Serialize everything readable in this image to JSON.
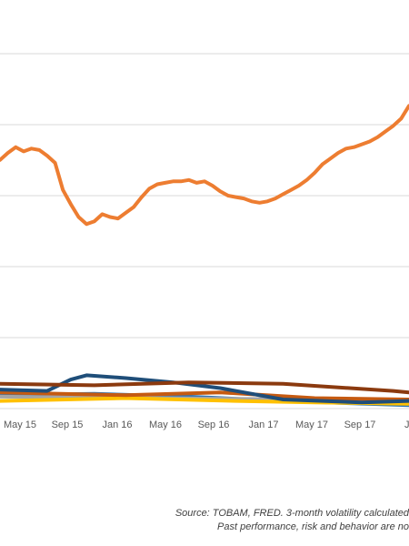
{
  "chart_data": {
    "type": "line",
    "x_tick_labels": [
      "May 15",
      "Sep 15",
      "Jan 16",
      "May 16",
      "Sep 16",
      "Jan 17",
      "May 17",
      "Sep 17",
      "Jan"
    ],
    "grid": "horizontal",
    "y_axis_labels_visible": false,
    "series": [
      {
        "color": "#ED7D31",
        "values": [
          [
            0,
            235
          ],
          [
            5,
            240
          ],
          [
            10,
            244
          ],
          [
            15,
            241
          ],
          [
            20,
            243
          ],
          [
            25,
            242
          ],
          [
            30,
            238
          ],
          [
            35,
            233
          ],
          [
            40,
            214
          ],
          [
            45,
            204
          ],
          [
            50,
            195
          ],
          [
            55,
            190
          ],
          [
            60,
            192
          ],
          [
            65,
            197
          ],
          [
            70,
            195
          ],
          [
            75,
            194
          ],
          [
            80,
            198
          ],
          [
            85,
            202
          ],
          [
            90,
            209
          ],
          [
            95,
            215
          ],
          [
            100,
            218
          ],
          [
            105,
            219
          ],
          [
            110,
            220
          ],
          [
            115,
            220
          ],
          [
            120,
            221
          ],
          [
            125,
            219
          ],
          [
            130,
            220
          ],
          [
            135,
            217
          ],
          [
            140,
            213
          ],
          [
            145,
            210
          ],
          [
            150,
            209
          ],
          [
            155,
            208
          ],
          [
            160,
            206
          ],
          [
            165,
            205
          ],
          [
            170,
            206
          ],
          [
            175,
            208
          ],
          [
            180,
            211
          ],
          [
            185,
            214
          ],
          [
            190,
            217
          ],
          [
            195,
            221
          ],
          [
            200,
            226
          ],
          [
            205,
            232
          ],
          [
            210,
            236
          ],
          [
            215,
            240
          ],
          [
            220,
            243
          ],
          [
            225,
            244
          ],
          [
            230,
            246
          ],
          [
            235,
            248
          ],
          [
            240,
            251
          ],
          [
            245,
            255
          ],
          [
            250,
            259
          ],
          [
            255,
            264
          ],
          [
            260,
            273
          ]
        ]
      },
      {
        "color": "#8B3A0F",
        "values": [
          [
            0,
            78
          ],
          [
            60,
            77
          ],
          [
            120,
            79
          ],
          [
            180,
            78
          ],
          [
            250,
            73
          ],
          [
            260,
            72
          ]
        ]
      },
      {
        "color": "#1F4E79",
        "values": [
          [
            0,
            74
          ],
          [
            30,
            73
          ],
          [
            45,
            81
          ],
          [
            55,
            84
          ],
          [
            80,
            82
          ],
          [
            110,
            79
          ],
          [
            140,
            75
          ],
          [
            180,
            67
          ],
          [
            230,
            65
          ],
          [
            260,
            66
          ]
        ]
      },
      {
        "color": "#C55A11",
        "values": [
          [
            0,
            72
          ],
          [
            80,
            70
          ],
          [
            140,
            72
          ],
          [
            200,
            68
          ],
          [
            260,
            67
          ]
        ]
      },
      {
        "color": "#FFC000",
        "values": [
          [
            0,
            66
          ],
          [
            80,
            68
          ],
          [
            150,
            66
          ],
          [
            200,
            65
          ],
          [
            260,
            64
          ]
        ]
      },
      {
        "color": "#A5A5A5",
        "values": [
          [
            0,
            69
          ],
          [
            100,
            68
          ],
          [
            200,
            67
          ],
          [
            260,
            66
          ]
        ]
      },
      {
        "color": "#2E75B6",
        "values": [
          [
            0,
            70
          ],
          [
            60,
            71
          ],
          [
            120,
            69
          ],
          [
            180,
            66
          ],
          [
            260,
            63
          ]
        ]
      }
    ]
  },
  "notes": {
    "line1": "Source: TOBAM, FRED. 3-month volatility calculated",
    "line2": "Past performance, risk and behavior are no"
  }
}
